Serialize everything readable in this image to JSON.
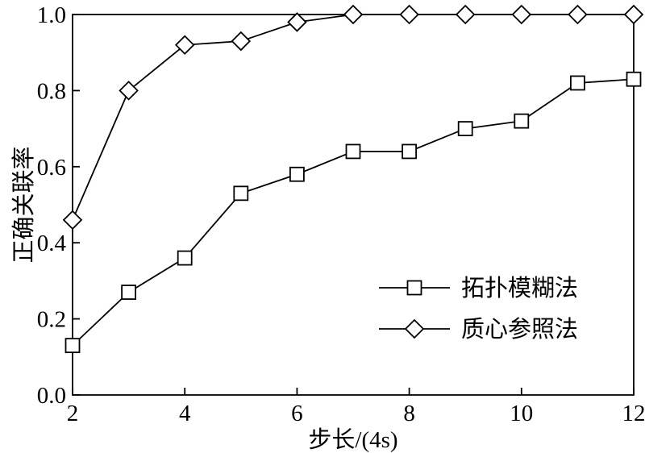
{
  "chart_data": {
    "type": "line",
    "title": "",
    "xlabel": "步长/(4s)",
    "ylabel": "正确关联率",
    "x": [
      2,
      3,
      4,
      5,
      6,
      7,
      8,
      9,
      10,
      11,
      12
    ],
    "series": [
      {
        "name": "拓扑模糊法",
        "marker": "square",
        "values": [
          0.13,
          0.27,
          0.36,
          0.53,
          0.58,
          0.64,
          0.64,
          0.7,
          0.72,
          0.82,
          0.83
        ]
      },
      {
        "name": "质心参照法",
        "marker": "diamond",
        "values": [
          0.46,
          0.8,
          0.92,
          0.93,
          0.98,
          1.0,
          1.0,
          1.0,
          1.0,
          1.0,
          1.0
        ]
      }
    ],
    "xlim": [
      2,
      12
    ],
    "ylim": [
      0.0,
      1.0
    ],
    "xticks": [
      2,
      4,
      6,
      8,
      10,
      12
    ],
    "yticks": [
      0.0,
      0.2,
      0.4,
      0.6,
      0.8,
      1.0
    ],
    "grid": false,
    "legend_position": "inside-center-right",
    "line_color": "#000000",
    "marker_fill": "#ffffff",
    "background": "#ffffff"
  }
}
